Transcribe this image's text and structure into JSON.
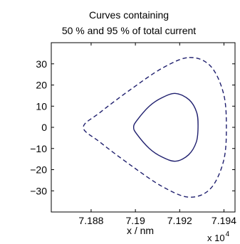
{
  "chart_data": {
    "type": "line",
    "title": [
      "Curves containing",
      "50 % and 95 % of total current"
    ],
    "xlabel": "x / nm",
    "ylabel": "",
    "x_multiplier": "x 10",
    "x_multiplier_exp": "4",
    "xlim": [
      7.1862,
      7.1945
    ],
    "ylim": [
      -40,
      40
    ],
    "xticks": [
      7.188,
      7.19,
      7.192,
      7.194
    ],
    "xtick_labels": [
      "7.188",
      "7.19",
      "7.192",
      "7.194"
    ],
    "yticks": [
      30,
      20,
      10,
      0,
      -10,
      -20,
      -30
    ],
    "ytick_labels": [
      "30",
      "20",
      "10",
      "0",
      "−10",
      "−20",
      "−30"
    ],
    "grid": false,
    "colors": {
      "series": "#1f1f6e",
      "axis": "#000000"
    },
    "series": [
      {
        "line_style": "solid",
        "x": [
          7.19182,
          7.19243,
          7.19277,
          7.19283,
          7.19275,
          7.1924,
          7.19182,
          7.1912,
          7.19063,
          7.19005,
          7.18992,
          7.19005,
          7.19063,
          7.1912,
          7.19182
        ],
        "y": [
          16,
          13,
          7,
          0,
          -7,
          -13,
          -16,
          -14,
          -10,
          -3,
          0,
          3,
          10,
          14,
          16
        ]
      },
      {
        "line_style": "dashed",
        "x": [
          7.19243,
          7.19339,
          7.19398,
          7.19411,
          7.19398,
          7.19339,
          7.19243,
          7.19122,
          7.1898,
          7.1884,
          7.18765,
          7.1884,
          7.1898,
          7.19122,
          7.19243
        ],
        "y": [
          33,
          29,
          16,
          0,
          -16,
          -29,
          -33,
          -28,
          -18,
          -7,
          0,
          7,
          18,
          28,
          33
        ]
      }
    ]
  }
}
